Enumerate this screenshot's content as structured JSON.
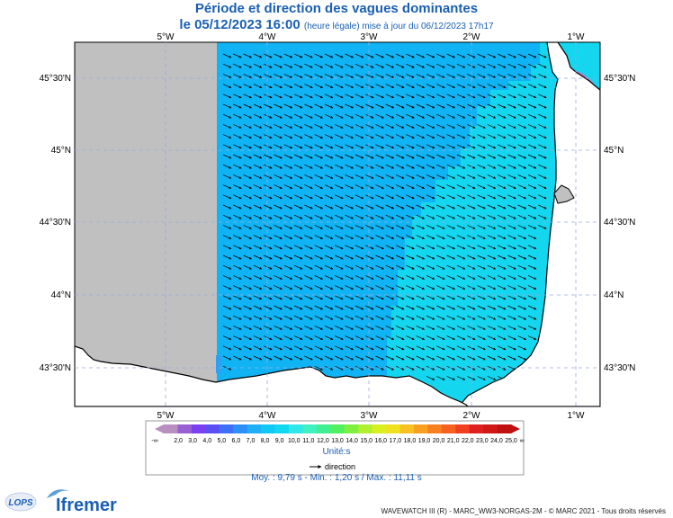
{
  "title": {
    "line1": "Période et direction des vagues dominantes",
    "date": "le 05/12/2023 16:00",
    "note": "(heure légale) mise à jour du 06/12/2023 17h17"
  },
  "axes": {
    "lon_labels": [
      "5°W",
      "4°W",
      "3°W",
      "2°W",
      "1°W"
    ],
    "lat_labels": [
      "45°30'N",
      "45°N",
      "44°30'N",
      "44°N",
      "43°30'N"
    ]
  },
  "colors": {
    "land": "#ffffff",
    "nodata": "#c0c0c0",
    "coast": "#000000"
  },
  "legend": {
    "ticks": [
      "-∞",
      "2,0",
      "3,0",
      "4,0",
      "5,0",
      "6,0",
      "7,0",
      "8,0",
      "9,0",
      "10,0",
      "11,0",
      "12,0",
      "13,0",
      "14,0",
      "15,0",
      "16,0",
      "17,0",
      "18,0",
      "19,0",
      "20,0",
      "21,0",
      "22,0",
      "23,0",
      "24,0",
      "25,0",
      "∞"
    ],
    "colors": [
      "#b88fc0",
      "#9a5fd0",
      "#7a3ff0",
      "#5a4ff5",
      "#3f6ff8",
      "#2f8ff8",
      "#1faff5",
      "#10c8f5",
      "#0fd8f0",
      "#30e8e8",
      "#40f0c0",
      "#40f090",
      "#50f060",
      "#80f040",
      "#b0f030",
      "#d8f020",
      "#f0e020",
      "#f8c020",
      "#f8a020",
      "#f88020",
      "#f86020",
      "#f04020",
      "#e02020",
      "#d01818",
      "#c01010"
    ],
    "unit": "Unité:s",
    "arrow_label": "direction"
  },
  "stats": {
    "text": "Moy. : 9,79 s   -   Min. : 1,20 s / Max. : 11,11 s"
  },
  "logos": {
    "lops": "LOPS",
    "ifremer": "Ifremer"
  },
  "credits": "WAVEWATCH III (R) - MARC_WW3-NORGAS-2M - © MARC 2021 - Tous droits réservés"
}
